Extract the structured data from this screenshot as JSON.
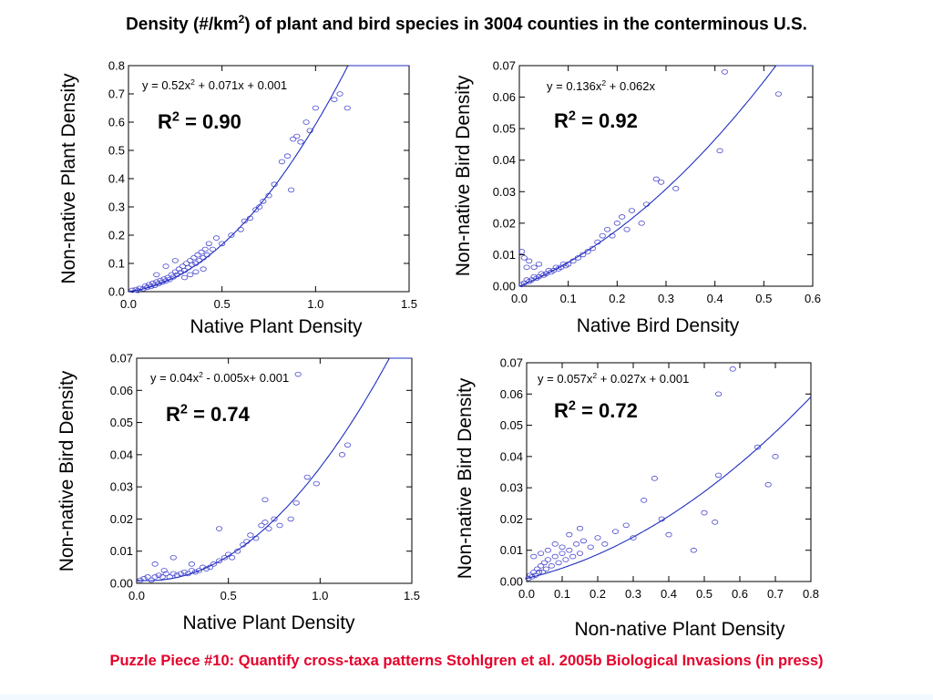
{
  "title": {
    "prefix": "Density (#/km",
    "sup": "2",
    "suffix": ") of plant and bird species in 3004 counties in the conterminous U.S."
  },
  "footer": "Puzzle Piece #10: Quantify cross-taxa patterns Stohlgren et al. 2005b Biological Invasions (in press)",
  "colors": {
    "points": "#4a4ad0",
    "fit_line": "#1f2fbf",
    "footer": "#e4002b"
  },
  "chart_data": [
    {
      "type": "scatter",
      "xlabel": "Native Plant Density",
      "ylabel": "Non-native Plant Density",
      "xlim": [
        0,
        1.5
      ],
      "ylim": [
        0,
        0.8
      ],
      "xticks": [
        0,
        0.5,
        1.0,
        1.5
      ],
      "xtick_labels": [
        "0.0",
        "0.5",
        "1.0",
        "1.5"
      ],
      "yticks": [
        0,
        0.1,
        0.2,
        0.3,
        0.4,
        0.5,
        0.6,
        0.7,
        0.8
      ],
      "ytick_labels": [
        "0.0",
        "0.1",
        "0.2",
        "0.3",
        "0.4",
        "0.5",
        "0.6",
        "0.7",
        "0.8"
      ],
      "equation": {
        "lead": "y = 0.52x",
        "sup": "2",
        "rest": " + 0.071x + 0.001"
      },
      "r2": {
        "lead": "R",
        "sup": "2",
        "rest": " = 0.90"
      },
      "fit": {
        "a": 0.52,
        "b": 0.071,
        "c": 0.001
      },
      "points": [
        [
          0.02,
          0.005
        ],
        [
          0.04,
          0.008
        ],
        [
          0.05,
          0.004
        ],
        [
          0.06,
          0.012
        ],
        [
          0.08,
          0.01
        ],
        [
          0.09,
          0.02
        ],
        [
          0.1,
          0.015
        ],
        [
          0.11,
          0.025
        ],
        [
          0.12,
          0.018
        ],
        [
          0.13,
          0.03
        ],
        [
          0.14,
          0.022
        ],
        [
          0.15,
          0.035
        ],
        [
          0.16,
          0.028
        ],
        [
          0.17,
          0.04
        ],
        [
          0.18,
          0.033
        ],
        [
          0.19,
          0.045
        ],
        [
          0.2,
          0.038
        ],
        [
          0.21,
          0.05
        ],
        [
          0.22,
          0.043
        ],
        [
          0.23,
          0.06
        ],
        [
          0.24,
          0.052
        ],
        [
          0.25,
          0.07
        ],
        [
          0.26,
          0.06
        ],
        [
          0.27,
          0.08
        ],
        [
          0.28,
          0.068
        ],
        [
          0.29,
          0.09
        ],
        [
          0.3,
          0.075
        ],
        [
          0.31,
          0.1
        ],
        [
          0.32,
          0.085
        ],
        [
          0.33,
          0.11
        ],
        [
          0.34,
          0.095
        ],
        [
          0.35,
          0.12
        ],
        [
          0.36,
          0.1
        ],
        [
          0.37,
          0.13
        ],
        [
          0.38,
          0.11
        ],
        [
          0.39,
          0.14
        ],
        [
          0.4,
          0.12
        ],
        [
          0.41,
          0.15
        ],
        [
          0.42,
          0.13
        ],
        [
          0.43,
          0.17
        ],
        [
          0.45,
          0.15
        ],
        [
          0.47,
          0.19
        ],
        [
          0.5,
          0.17
        ],
        [
          0.55,
          0.2
        ],
        [
          0.6,
          0.22
        ],
        [
          0.62,
          0.25
        ],
        [
          0.65,
          0.26
        ],
        [
          0.68,
          0.29
        ],
        [
          0.7,
          0.3
        ],
        [
          0.72,
          0.32
        ],
        [
          0.75,
          0.34
        ],
        [
          0.78,
          0.38
        ],
        [
          0.82,
          0.46
        ],
        [
          0.85,
          0.48
        ],
        [
          0.88,
          0.54
        ],
        [
          0.9,
          0.55
        ],
        [
          0.92,
          0.53
        ],
        [
          0.95,
          0.6
        ],
        [
          0.97,
          0.57
        ],
        [
          1.0,
          0.65
        ],
        [
          1.1,
          0.68
        ],
        [
          1.13,
          0.7
        ],
        [
          1.17,
          0.65
        ],
        [
          0.87,
          0.36
        ],
        [
          0.3,
          0.05
        ],
        [
          0.33,
          0.06
        ],
        [
          0.36,
          0.07
        ],
        [
          0.15,
          0.06
        ],
        [
          0.2,
          0.09
        ],
        [
          0.25,
          0.11
        ],
        [
          0.4,
          0.08
        ]
      ]
    },
    {
      "type": "scatter",
      "xlabel": "Native Bird Density",
      "ylabel": "Non-native Bird Density",
      "xlim": [
        0,
        0.6
      ],
      "ylim": [
        0,
        0.07
      ],
      "xticks": [
        0,
        0.1,
        0.2,
        0.3,
        0.4,
        0.5,
        0.6
      ],
      "xtick_labels": [
        "0.0",
        "0.1",
        "0.2",
        "0.3",
        "0.4",
        "0.5",
        "0.6"
      ],
      "yticks": [
        0,
        0.01,
        0.02,
        0.03,
        0.04,
        0.05,
        0.06,
        0.07
      ],
      "ytick_labels": [
        "0.00",
        "0.01",
        "0.02",
        "0.03",
        "0.04",
        "0.05",
        "0.06",
        "0.07"
      ],
      "equation": {
        "lead": "y = 0.136x",
        "sup": "2",
        "rest": " + 0.062x"
      },
      "r2": {
        "lead": "R",
        "sup": "2",
        "rest": " = 0.92"
      },
      "fit": {
        "a": 0.136,
        "b": 0.062,
        "c": 0
      },
      "points": [
        [
          0.005,
          0.0005
        ],
        [
          0.01,
          0.001
        ],
        [
          0.015,
          0.002
        ],
        [
          0.02,
          0.0015
        ],
        [
          0.025,
          0.002
        ],
        [
          0.03,
          0.003
        ],
        [
          0.035,
          0.0025
        ],
        [
          0.04,
          0.003
        ],
        [
          0.045,
          0.004
        ],
        [
          0.05,
          0.0035
        ],
        [
          0.055,
          0.004
        ],
        [
          0.06,
          0.005
        ],
        [
          0.065,
          0.0045
        ],
        [
          0.07,
          0.005
        ],
        [
          0.075,
          0.006
        ],
        [
          0.08,
          0.0055
        ],
        [
          0.085,
          0.006
        ],
        [
          0.09,
          0.007
        ],
        [
          0.095,
          0.0065
        ],
        [
          0.1,
          0.007
        ],
        [
          0.11,
          0.008
        ],
        [
          0.12,
          0.009
        ],
        [
          0.13,
          0.01
        ],
        [
          0.14,
          0.011
        ],
        [
          0.15,
          0.012
        ],
        [
          0.16,
          0.014
        ],
        [
          0.17,
          0.016
        ],
        [
          0.18,
          0.018
        ],
        [
          0.19,
          0.016
        ],
        [
          0.2,
          0.02
        ],
        [
          0.21,
          0.022
        ],
        [
          0.22,
          0.018
        ],
        [
          0.23,
          0.024
        ],
        [
          0.25,
          0.02
        ],
        [
          0.26,
          0.026
        ],
        [
          0.28,
          0.034
        ],
        [
          0.29,
          0.033
        ],
        [
          0.32,
          0.031
        ],
        [
          0.41,
          0.043
        ],
        [
          0.42,
          0.068
        ],
        [
          0.53,
          0.061
        ],
        [
          0.005,
          0.011
        ],
        [
          0.01,
          0.009
        ],
        [
          0.015,
          0.006
        ],
        [
          0.02,
          0.008
        ],
        [
          0.03,
          0.006
        ],
        [
          0.04,
          0.007
        ]
      ]
    },
    {
      "type": "scatter",
      "xlabel": "Native Plant Density",
      "ylabel": "Non-native Bird Density",
      "xlim": [
        0,
        1.5
      ],
      "ylim": [
        0,
        0.07
      ],
      "xticks": [
        0,
        0.5,
        1.0,
        1.5
      ],
      "xtick_labels": [
        "0.0",
        "0.5",
        "1.0",
        "1.5"
      ],
      "yticks": [
        0,
        0.01,
        0.02,
        0.03,
        0.04,
        0.05,
        0.06,
        0.07
      ],
      "ytick_labels": [
        "0.00",
        "0.01",
        "0.02",
        "0.03",
        "0.04",
        "0.05",
        "0.06",
        "0.07"
      ],
      "equation": {
        "lead": "y = 0.04x",
        "sup": "2",
        "rest": " - 0.005x+ 0.001"
      },
      "r2": {
        "lead": "R",
        "sup": "2",
        "rest": " = 0.74"
      },
      "fit": {
        "a": 0.04,
        "b": -0.005,
        "c": 0.001
      },
      "points": [
        [
          0.02,
          0.001
        ],
        [
          0.04,
          0.0015
        ],
        [
          0.06,
          0.002
        ],
        [
          0.08,
          0.001
        ],
        [
          0.1,
          0.002
        ],
        [
          0.12,
          0.0025
        ],
        [
          0.14,
          0.002
        ],
        [
          0.16,
          0.003
        ],
        [
          0.18,
          0.002
        ],
        [
          0.2,
          0.003
        ],
        [
          0.22,
          0.0025
        ],
        [
          0.24,
          0.003
        ],
        [
          0.26,
          0.0035
        ],
        [
          0.28,
          0.003
        ],
        [
          0.3,
          0.004
        ],
        [
          0.32,
          0.0035
        ],
        [
          0.34,
          0.004
        ],
        [
          0.36,
          0.005
        ],
        [
          0.38,
          0.0045
        ],
        [
          0.4,
          0.005
        ],
        [
          0.42,
          0.006
        ],
        [
          0.45,
          0.007
        ],
        [
          0.48,
          0.008
        ],
        [
          0.5,
          0.009
        ],
        [
          0.52,
          0.008
        ],
        [
          0.55,
          0.01
        ],
        [
          0.58,
          0.012
        ],
        [
          0.6,
          0.013
        ],
        [
          0.62,
          0.015
        ],
        [
          0.65,
          0.014
        ],
        [
          0.68,
          0.018
        ],
        [
          0.7,
          0.019
        ],
        [
          0.72,
          0.017
        ],
        [
          0.75,
          0.02
        ],
        [
          0.78,
          0.018
        ],
        [
          0.84,
          0.02
        ],
        [
          0.87,
          0.025
        ],
        [
          0.93,
          0.033
        ],
        [
          0.98,
          0.031
        ],
        [
          1.12,
          0.04
        ],
        [
          1.15,
          0.043
        ],
        [
          0.88,
          0.065
        ],
        [
          0.7,
          0.026
        ],
        [
          0.45,
          0.017
        ],
        [
          0.2,
          0.008
        ],
        [
          0.3,
          0.006
        ],
        [
          0.15,
          0.004
        ],
        [
          0.1,
          0.006
        ]
      ]
    },
    {
      "type": "scatter",
      "xlabel": "Non-native Plant Density",
      "ylabel": "Non-native Bird Density",
      "xlim": [
        0,
        0.8
      ],
      "ylim": [
        0,
        0.07
      ],
      "xticks": [
        0,
        0.1,
        0.2,
        0.3,
        0.4,
        0.5,
        0.6,
        0.7,
        0.8
      ],
      "xtick_labels": [
        "0.0",
        "0.1",
        "0.2",
        "0.3",
        "0.4",
        "0.5",
        "0.6",
        "0.7",
        "0.8"
      ],
      "yticks": [
        0,
        0.01,
        0.02,
        0.03,
        0.04,
        0.05,
        0.06,
        0.07
      ],
      "ytick_labels": [
        "0.00",
        "0.01",
        "0.02",
        "0.03",
        "0.04",
        "0.05",
        "0.06",
        "0.07"
      ],
      "equation": {
        "lead": "y = 0.057x",
        "sup": "2",
        "rest": " + 0.027x + 0.001"
      },
      "r2": {
        "lead": "R",
        "sup": "2",
        "rest": " = 0.72"
      },
      "fit": {
        "a": 0.057,
        "b": 0.027,
        "c": 0.001
      },
      "points": [
        [
          0.005,
          0.001
        ],
        [
          0.01,
          0.002
        ],
        [
          0.015,
          0.0015
        ],
        [
          0.02,
          0.003
        ],
        [
          0.025,
          0.002
        ],
        [
          0.03,
          0.004
        ],
        [
          0.035,
          0.003
        ],
        [
          0.04,
          0.005
        ],
        [
          0.045,
          0.003
        ],
        [
          0.05,
          0.006
        ],
        [
          0.055,
          0.004
        ],
        [
          0.06,
          0.007
        ],
        [
          0.07,
          0.005
        ],
        [
          0.08,
          0.008
        ],
        [
          0.09,
          0.006
        ],
        [
          0.1,
          0.009
        ],
        [
          0.11,
          0.007
        ],
        [
          0.12,
          0.01
        ],
        [
          0.13,
          0.008
        ],
        [
          0.14,
          0.012
        ],
        [
          0.15,
          0.009
        ],
        [
          0.16,
          0.013
        ],
        [
          0.18,
          0.011
        ],
        [
          0.2,
          0.014
        ],
        [
          0.22,
          0.012
        ],
        [
          0.25,
          0.016
        ],
        [
          0.28,
          0.018
        ],
        [
          0.3,
          0.014
        ],
        [
          0.33,
          0.026
        ],
        [
          0.36,
          0.033
        ],
        [
          0.38,
          0.02
        ],
        [
          0.47,
          0.01
        ],
        [
          0.5,
          0.022
        ],
        [
          0.54,
          0.034
        ],
        [
          0.54,
          0.06
        ],
        [
          0.58,
          0.068
        ],
        [
          0.65,
          0.043
        ],
        [
          0.68,
          0.031
        ],
        [
          0.7,
          0.04
        ],
        [
          0.53,
          0.019
        ],
        [
          0.4,
          0.015
        ],
        [
          0.02,
          0.008
        ],
        [
          0.04,
          0.009
        ],
        [
          0.06,
          0.01
        ],
        [
          0.08,
          0.012
        ],
        [
          0.1,
          0.011
        ],
        [
          0.12,
          0.015
        ],
        [
          0.15,
          0.017
        ]
      ]
    }
  ]
}
